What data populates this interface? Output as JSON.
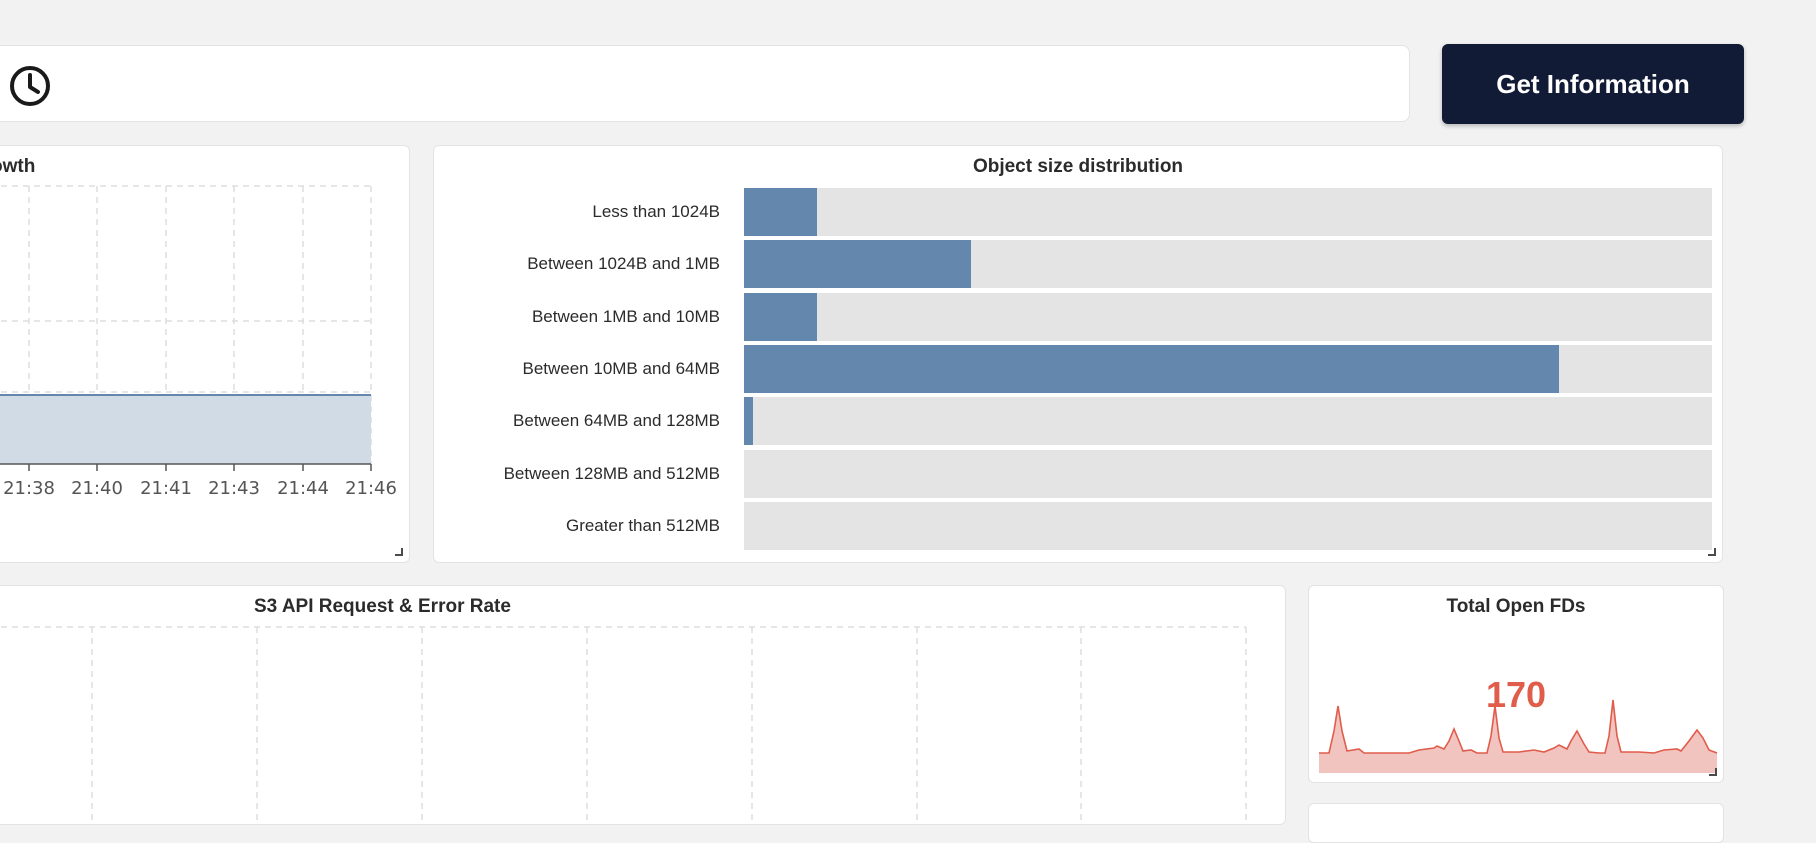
{
  "toolbar": {
    "button_label": "Get Information",
    "clock_icon": "clock-icon"
  },
  "growth_panel": {
    "title": "owth",
    "x_ticks": [
      "21:38",
      "21:40",
      "21:41",
      "21:43",
      "21:44",
      "21:46"
    ],
    "fill_color": "#d0dbe6",
    "line_color": "#6488ad"
  },
  "object_size_panel": {
    "title": "Object size distribution",
    "bar_color": "#6488ad",
    "track_color": "#e4e4e4"
  },
  "s3_panel": {
    "title": "S3 API Request & Error Rate"
  },
  "fds_panel": {
    "title": "Total Open FDs",
    "value": "170",
    "color": "#e05c4b"
  },
  "chart_data": {
    "type": "bar",
    "title": "Object size distribution",
    "categories": [
      "Less than 1024B",
      "Between 1024B and 1MB",
      "Between 1MB and 10MB",
      "Between 10MB and 64MB",
      "Between 64MB and 128MB",
      "Between 128MB and 512MB",
      "Greater than 512MB"
    ],
    "values": [
      0.075,
      0.234,
      0.075,
      0.842,
      0.009,
      0,
      0
    ],
    "xlim": [
      0,
      1
    ],
    "orientation": "horizontal"
  }
}
